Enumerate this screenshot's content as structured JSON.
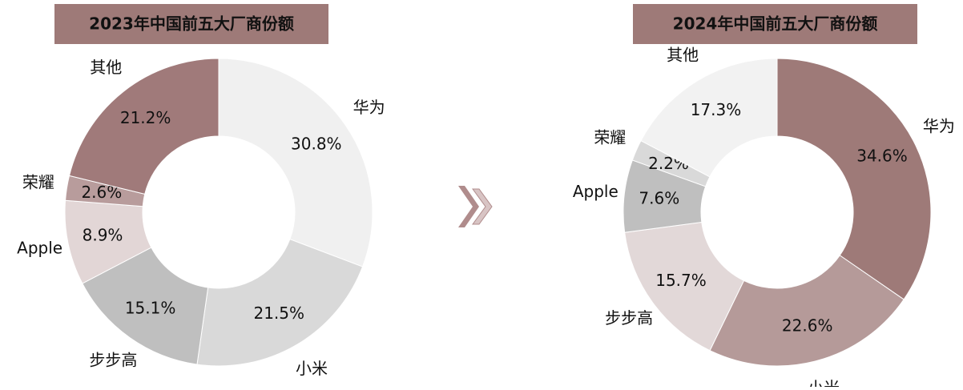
{
  "chart_data": [
    {
      "type": "pie",
      "title": "2023年中国前五大厂商份额",
      "categories": [
        "华为",
        "小米",
        "步步高",
        "Apple",
        "荣耀",
        "其他"
      ],
      "values": [
        30.8,
        21.5,
        15.1,
        8.9,
        2.6,
        21.2
      ],
      "value_labels": [
        "30.8%",
        "21.5%",
        "15.1%",
        "8.9%",
        "2.6%",
        "21.2%"
      ],
      "colors": [
        "#f0f0f0",
        "#d9d9d9",
        "#bfbfbf",
        "#e2d6d6",
        "#b89c9c",
        "#a07a7a"
      ]
    },
    {
      "type": "pie",
      "title": "2024年中国前五大厂商份额",
      "categories": [
        "华为",
        "小米",
        "步步高",
        "Apple",
        "荣耀",
        "其他"
      ],
      "values": [
        34.6,
        22.6,
        15.7,
        7.6,
        2.2,
        17.3
      ],
      "value_labels": [
        "34.6%",
        "22.6%",
        "15.7%",
        "7.6%",
        "2.2%",
        "17.3%"
      ],
      "colors": [
        "#9e7a78",
        "#b59a99",
        "#e2d8d8",
        "#bfbfbf",
        "#d9d9d9",
        "#f2f2f2"
      ]
    }
  ]
}
